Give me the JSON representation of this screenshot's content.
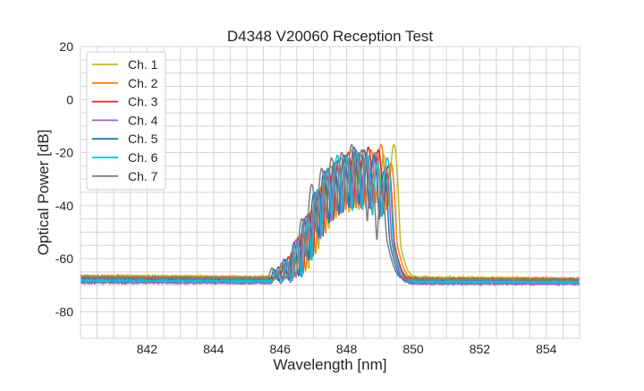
{
  "chart_data": {
    "type": "line",
    "title": "D4348 V20060 Reception Test",
    "xlabel": "Wavelength [nm]",
    "ylabel": "Optical Power [dB]",
    "xlim": [
      840,
      855
    ],
    "ylim": [
      -90,
      20
    ],
    "xticks": [
      842,
      844,
      846,
      848,
      850,
      852,
      854
    ],
    "yticks": [
      20,
      0,
      -20,
      -40,
      -60,
      -80
    ],
    "xminor_step": 0.5,
    "yminor_step": 5,
    "grid": true,
    "legend_position": "top-left",
    "mode_spacing_nm": 0.3,
    "series": [
      {
        "name": "Ch. 1",
        "color": "#bcbd22",
        "last_mode_nm": 849.42,
        "baseline_db": [
          -66.5,
          -67.5
        ],
        "mode_powers_db": [
          -17,
          -21,
          -20,
          -19,
          -22,
          -21,
          -24,
          -31,
          -40,
          -50,
          -58,
          -64
        ]
      },
      {
        "name": "Ch. 2",
        "color": "#ff7f0e",
        "last_mode_nm": 849.33,
        "baseline_db": [
          -66.8,
          -67.8
        ],
        "mode_powers_db": [
          -24,
          -17,
          -19,
          -21,
          -19,
          -22,
          -25,
          -33,
          -42,
          -51,
          -59,
          -65
        ]
      },
      {
        "name": "Ch. 3",
        "color": "#d62728",
        "last_mode_nm": 849.25,
        "baseline_db": [
          -67.5,
          -68.0
        ],
        "mode_powers_db": [
          -25,
          -19,
          -18,
          -20,
          -20,
          -23,
          -26,
          -34,
          -43,
          -52,
          -60,
          -65
        ]
      },
      {
        "name": "Ch. 4",
        "color": "#9467bd",
        "last_mode_nm": 849.18,
        "baseline_db": [
          -69.0,
          -69.5
        ],
        "mode_powers_db": [
          -26,
          -20,
          -21,
          -19,
          -21,
          -23,
          -27,
          -35,
          -44,
          -53,
          -61,
          -66
        ]
      },
      {
        "name": "Ch. 5",
        "color": "#1f77b4",
        "last_mode_nm": 849.12,
        "baseline_db": [
          -68.0,
          -68.5
        ],
        "mode_powers_db": [
          -27,
          -21,
          -19,
          -18,
          -21,
          -24,
          -27,
          -35,
          -45,
          -54,
          -61,
          -66
        ]
      },
      {
        "name": "Ch. 6",
        "color": "#17becf",
        "last_mode_nm": 849.22,
        "baseline_db": [
          -68.2,
          -68.8
        ],
        "mode_powers_db": [
          -22,
          -24,
          -21,
          -20,
          -22,
          -21,
          -26,
          -34,
          -46,
          -55,
          -62,
          -66
        ]
      },
      {
        "name": "Ch. 7",
        "color": "#7f7f7f",
        "last_mode_nm": 849.05,
        "baseline_db": [
          -67.0,
          -68.0
        ],
        "mode_powers_db": [
          -34,
          -30,
          -19,
          -17,
          -20,
          -22,
          -26,
          -32,
          -45,
          -58,
          -63,
          -66
        ]
      }
    ]
  }
}
